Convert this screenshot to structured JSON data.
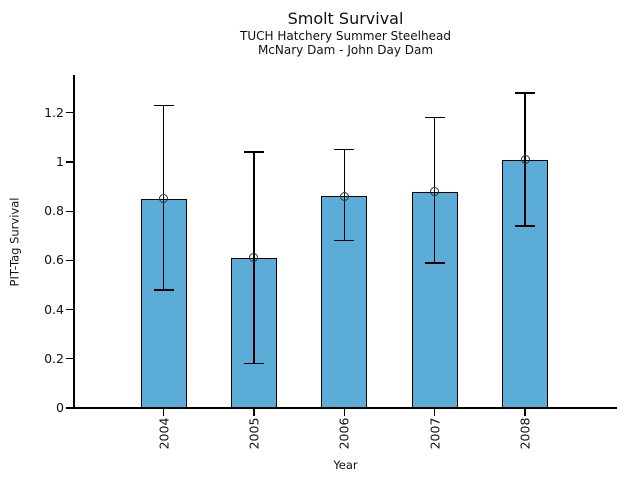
{
  "chart_data": {
    "type": "bar",
    "title": "Smolt Survival",
    "subtitle": [
      "TUCH Hatchery Summer Steelhead",
      "McNary Dam - John Day Dam"
    ],
    "xlabel": "Year",
    "ylabel": "PIT-Tag Survival",
    "categories": [
      "2004",
      "2005",
      "2006",
      "2007",
      "2008"
    ],
    "series": [
      {
        "name": "PIT-Tag Survival",
        "values": [
          0.85,
          0.61,
          0.86,
          0.88,
          1.01
        ],
        "error_low": [
          0.48,
          0.18,
          0.68,
          0.59,
          0.74
        ],
        "error_high": [
          1.23,
          1.04,
          1.05,
          1.18,
          1.28
        ]
      }
    ],
    "yticks": [
      0,
      0.2,
      0.4,
      0.6,
      0.8,
      1,
      1.2
    ],
    "ytick_labels": [
      "0",
      "0.2",
      "0.4",
      "0.6",
      "0.8",
      "1",
      "1.2"
    ],
    "ylim": [
      0,
      1.35
    ],
    "grid": false,
    "legend": null,
    "bar_color": "#5BACD6",
    "bar_edge_color": "#000000",
    "error_bar_color": "#000000",
    "marker": "open-circle"
  }
}
